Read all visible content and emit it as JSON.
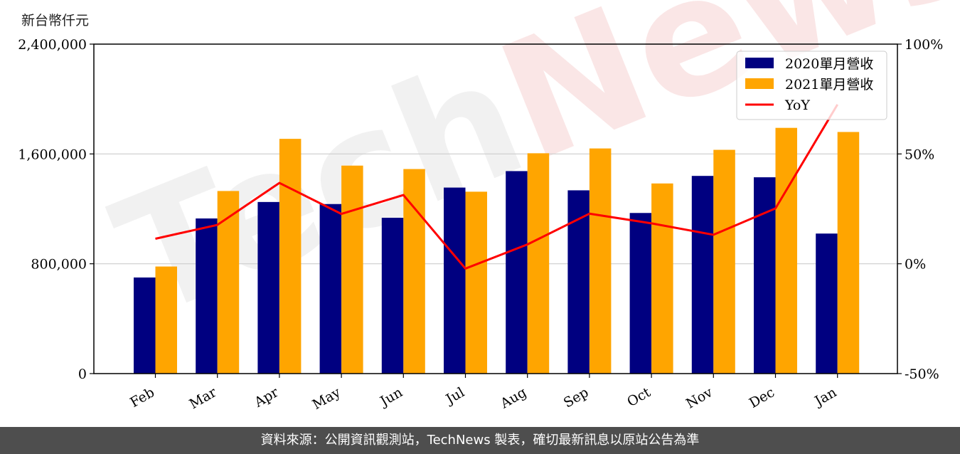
{
  "unit_label": "新台幣仟元",
  "footer_text": "資料來源：公開資訊觀測站，TechNews 製表，確切最新訊息以原站公告為準",
  "watermark": {
    "part1": "Tech",
    "part2": "News"
  },
  "colors": {
    "series_2020": "#000080",
    "series_2021": "#ffa500",
    "yoy": "#ff0000",
    "footer_bg": "#4e4e4e"
  },
  "chart_data": {
    "type": "bar",
    "categories": [
      "Feb",
      "Mar",
      "Apr",
      "May",
      "Jun",
      "Jul",
      "Aug",
      "Sep",
      "Oct",
      "Nov",
      "Dec",
      "Jan"
    ],
    "series": [
      {
        "name": "2020單月營收",
        "type": "bar",
        "axis": "left",
        "values": [
          700000,
          1130000,
          1250000,
          1235000,
          1135000,
          1355000,
          1475000,
          1335000,
          1170000,
          1440000,
          1430000,
          1020000
        ]
      },
      {
        "name": "2021單月營收",
        "type": "bar",
        "axis": "left",
        "values": [
          780000,
          1330000,
          1710000,
          1515000,
          1490000,
          1325000,
          1605000,
          1640000,
          1385000,
          1630000,
          1790000,
          1760000
        ]
      },
      {
        "name": "YoY",
        "type": "line",
        "axis": "right",
        "values": [
          11.4,
          17.7,
          36.8,
          22.7,
          31.3,
          -2.2,
          8.8,
          22.8,
          18.4,
          13.2,
          25.2,
          72.5
        ]
      }
    ],
    "y_left": {
      "range": [
        0,
        2400000
      ],
      "ticks": [
        0,
        800000,
        1600000,
        2400000
      ],
      "tick_labels": [
        "0",
        "800,000",
        "1,600,000",
        "2,400,000"
      ]
    },
    "y_right": {
      "range": [
        -50,
        100
      ],
      "ticks": [
        -50,
        0,
        50,
        100
      ],
      "tick_labels": [
        "-50%",
        "0%",
        "50%",
        "100%"
      ]
    },
    "grid": "horizontal",
    "legend_position": "top-right"
  }
}
